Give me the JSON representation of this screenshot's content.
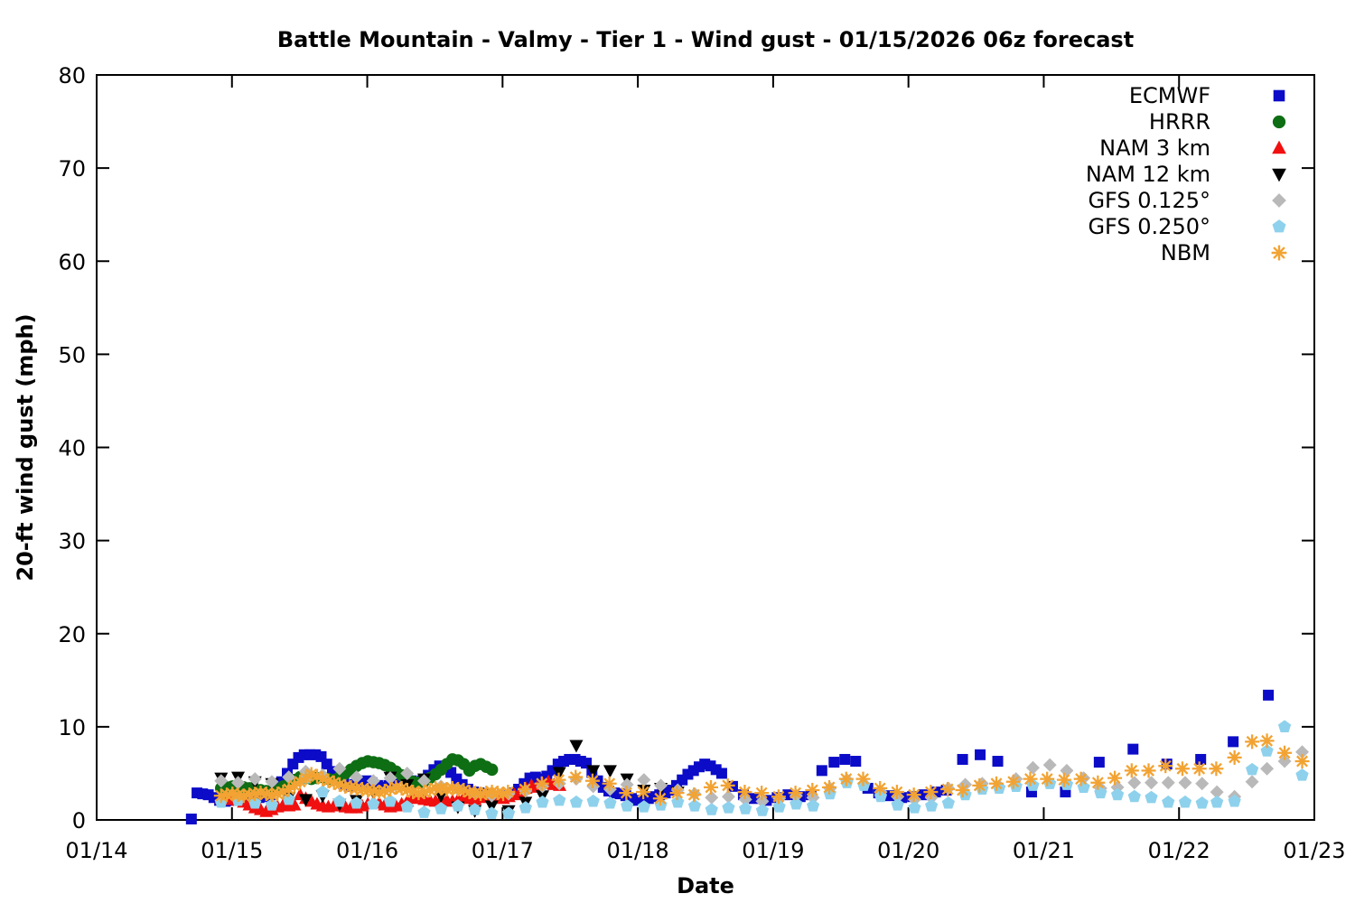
{
  "window": {
    "title": "Battle Mountain - Valmy - Tier 1 - Wind gust - 01/15/2026 06z forecast"
  },
  "chart_data": {
    "type": "scatter",
    "title": "Battle Mountain - Valmy - Tier 1 - Wind gust - 01/15/2026 06z forecast",
    "xlabel": "Date",
    "ylabel": "20-ft wind gust (mph)",
    "ylim": [
      0,
      80
    ],
    "yticks": [
      0,
      10,
      20,
      30,
      40,
      50,
      60,
      70,
      80
    ],
    "x_range_days": [
      0,
      9
    ],
    "xtick_labels": [
      "01/14",
      "01/15",
      "01/16",
      "01/17",
      "01/18",
      "01/19",
      "01/20",
      "01/21",
      "01/22",
      "01/23"
    ],
    "grid": false,
    "legend_position": "top-right-inside",
    "axis_color": "#000000",
    "background_color": "#ffffff",
    "series": [
      {
        "name": "ECMWF",
        "marker": "square",
        "color": "#0b0bc8",
        "segments": [
          {
            "start": 0.7,
            "step": 0.0417,
            "values": [
              0.1,
              2.9,
              2.8,
              2.7,
              2.4,
              2.1,
              2.0,
              2.1,
              2.2,
              2.4,
              2.6,
              2.5,
              2.4,
              2.5,
              2.7,
              3.3,
              4.1,
              5.0,
              6.0,
              6.7,
              7.0,
              7.0,
              7.0,
              6.8,
              6.0,
              5.2,
              4.4,
              3.9,
              3.6,
              3.8,
              4.1,
              4.2,
              4.0,
              3.7,
              3.5,
              3.7,
              4.1,
              4.5,
              4.6,
              4.2,
              3.9,
              4.2,
              4.8,
              5.4,
              5.8,
              5.6,
              5.1,
              4.4,
              3.8,
              3.3,
              3.0,
              2.9,
              2.8,
              2.6,
              2.5,
              2.4,
              2.6,
              2.9,
              3.3,
              3.9,
              4.5,
              4.6,
              4.4,
              4.7,
              5.3,
              6.0,
              6.3,
              6.5,
              6.5,
              6.3,
              6.1,
              5.1,
              4.2,
              3.5,
              3.1,
              2.9,
              2.8,
              2.6,
              2.3,
              2.1,
              2.1,
              2.3,
              2.5,
              2.7,
              2.9,
              3.2,
              3.7,
              4.3,
              4.9,
              5.3,
              5.7,
              6.0,
              5.8,
              5.4,
              5.0
            ]
          }
        ],
        "points": [
          [
            4.7,
            3.6
          ],
          [
            4.78,
            2.7
          ],
          [
            4.86,
            2.3
          ],
          [
            4.95,
            2.1
          ],
          [
            5.03,
            2.4
          ],
          [
            5.11,
            2.7
          ],
          [
            5.2,
            2.5
          ],
          [
            5.28,
            2.7
          ],
          [
            5.36,
            5.3
          ],
          [
            5.45,
            6.2
          ],
          [
            5.53,
            6.5
          ],
          [
            5.61,
            6.3
          ],
          [
            5.7,
            3.4
          ],
          [
            5.78,
            2.9
          ],
          [
            5.86,
            2.6
          ],
          [
            5.95,
            2.4
          ],
          [
            6.03,
            2.5
          ],
          [
            6.11,
            2.7
          ],
          [
            6.2,
            3.0
          ],
          [
            6.28,
            3.2
          ],
          [
            6.4,
            6.5
          ],
          [
            6.53,
            7.0
          ],
          [
            6.66,
            6.3
          ],
          [
            6.91,
            3.0
          ],
          [
            7.16,
            3.0
          ],
          [
            7.41,
            6.2
          ],
          [
            7.66,
            7.6
          ],
          [
            7.91,
            6.0
          ],
          [
            8.16,
            6.5
          ],
          [
            8.4,
            8.4
          ],
          [
            8.66,
            13.4
          ]
        ]
      },
      {
        "name": "HRRR",
        "marker": "circle",
        "color": "#0e6e14",
        "segments": [
          {
            "start": 0.92,
            "step": 0.0417,
            "values": [
              3.4,
              3.5,
              3.6,
              3.6,
              3.5,
              3.4,
              3.3,
              3.2,
              3.1,
              3.1,
              3.2,
              3.6,
              3.9,
              4.3,
              4.6,
              4.5,
              4.4,
              4.5,
              4.6,
              4.4,
              4.3,
              4.6,
              5.0,
              5.4,
              5.8,
              6.1,
              6.3,
              6.2,
              6.1,
              5.9,
              5.6,
              5.2,
              4.8,
              4.4,
              4.1,
              4.0,
              4.2,
              4.5,
              4.9,
              5.4,
              6.0,
              6.5,
              6.4,
              6.0,
              5.3,
              5.8,
              6.0,
              5.7,
              5.4
            ]
          }
        ],
        "points": []
      },
      {
        "name": "NAM 3 km",
        "marker": "triangle-up",
        "color": "#f01010",
        "segments": [
          {
            "start": 0.92,
            "step": 0.0417,
            "values": [
              2.3,
              2.2,
              2.2,
              2.1,
              1.9,
              1.6,
              1.3,
              1.1,
              0.9,
              1.1,
              1.4,
              1.6,
              1.5,
              1.6,
              2.7,
              2.3,
              2.0,
              1.7,
              1.5,
              1.4,
              1.5,
              1.6,
              1.4,
              1.3,
              1.3,
              1.5,
              1.7,
              1.9,
              1.8,
              1.6,
              1.4,
              1.5,
              1.7,
              2.0,
              2.3,
              2.5,
              2.2,
              2.1,
              2.0,
              2.2,
              2.1,
              2.0,
              2.2,
              2.4,
              2.3,
              2.2,
              2.4,
              2.6,
              2.8,
              2.5,
              2.3,
              2.5,
              2.7,
              3.0,
              3.4,
              3.7,
              3.5,
              3.9,
              4.1,
              3.8,
              3.7
            ]
          }
        ],
        "points": []
      },
      {
        "name": "NAM 12 km",
        "marker": "triangle-down",
        "color": "#000000",
        "segments": [
          {
            "start": 0.92,
            "step": 0.125,
            "values": [
              4.5,
              4.6,
              4.1,
              3.9,
              2.4,
              2.2,
              2.6,
              1.7,
              2.1,
              3.0,
              4.6,
              3.8,
              4.4,
              2.6,
              1.4,
              1.0,
              1.5,
              1.0,
              1.9,
              2.6,
              5.1,
              8.0,
              5.3,
              5.3,
              4.4,
              3.2,
              3.4,
              3.0
            ]
          }
        ],
        "points": []
      },
      {
        "name": "GFS 0.125°",
        "marker": "diamond",
        "color": "#b9b9b9",
        "segments": [
          {
            "start": 0.92,
            "step": 0.125,
            "values": [
              4.2,
              4.0,
              4.4,
              4.1,
              4.6,
              5.2,
              4.8,
              5.5,
              4.6,
              4.2,
              4.5,
              5.0,
              4.2,
              3.6,
              3.3,
              2.9,
              2.6,
              2.8,
              3.1,
              3.6,
              3.9,
              4.4,
              3.6,
              3.3,
              3.8,
              4.3,
              3.7,
              3.2,
              2.8,
              2.4,
              2.5,
              2.2,
              2.0,
              2.3,
              2.6,
              2.4,
              3.4,
              4.3,
              3.9,
              3.0,
              2.5,
              2.2,
              2.4,
              3.4,
              3.8,
              3.9,
              3.6,
              4.4,
              5.6,
              5.9,
              5.3,
              4.5,
              3.4,
              3.5,
              4.0,
              4.0,
              4.0,
              4.0,
              3.9
            ]
          }
        ],
        "points": [
          [
            8.28,
            3.0
          ],
          [
            8.41,
            2.5
          ],
          [
            8.54,
            4.1
          ],
          [
            8.65,
            5.5
          ],
          [
            8.78,
            6.3
          ],
          [
            8.91,
            7.3
          ]
        ]
      },
      {
        "name": "GFS 0.250°",
        "marker": "pentagon",
        "color": "#8ed1ec",
        "segments": [
          {
            "start": 0.92,
            "step": 0.125,
            "values": [
              1.9,
              2.1,
              1.8,
              1.6,
              2.2,
              4.5,
              3.0,
              2.0,
              1.8,
              1.7,
              2.0,
              1.4,
              0.8,
              1.2,
              1.5,
              1.1,
              0.7,
              0.7,
              1.3,
              1.9,
              2.1,
              1.9,
              2.0,
              1.8,
              1.5,
              1.4,
              1.6,
              1.9,
              1.5,
              1.1,
              1.3,
              1.2,
              1.0,
              1.4,
              1.7,
              1.5,
              2.8,
              4.0,
              3.7,
              2.5,
              1.6,
              1.3,
              1.5,
              1.8,
              2.7,
              3.3,
              3.4,
              3.6,
              3.7,
              3.9,
              3.8,
              3.5,
              2.9,
              2.7,
              2.5,
              2.4,
              1.9,
              1.9,
              1.8
            ]
          }
        ],
        "points": [
          [
            8.28,
            1.9
          ],
          [
            8.41,
            2.0
          ],
          [
            8.54,
            5.4
          ],
          [
            8.65,
            7.4
          ],
          [
            8.78,
            10.0
          ],
          [
            8.91,
            4.8
          ]
        ]
      },
      {
        "name": "NBM",
        "marker": "asterisk",
        "color": "#f2a333",
        "segments": [
          {
            "start": 0.92,
            "step": 0.0417,
            "values": [
              2.6,
              2.7,
              2.8,
              2.7,
              2.6,
              2.7,
              2.8,
              2.9,
              2.8,
              2.7,
              2.8,
              3.0,
              3.3,
              3.7,
              4.1,
              4.5,
              4.9,
              4.7,
              4.4,
              4.2,
              4.0,
              3.8,
              3.6,
              3.5,
              3.4,
              3.3,
              3.2,
              3.1,
              3.0,
              3.1,
              3.3,
              3.5,
              3.4,
              3.2,
              3.0,
              2.9,
              3.0,
              3.2,
              3.4,
              3.4,
              3.3,
              3.4,
              3.3,
              3.2,
              3.0,
              2.9,
              2.8,
              2.9,
              3.0,
              2.9,
              2.8
            ]
          },
          {
            "start": 3.04,
            "step": 0.125,
            "values": [
              3.0,
              3.3,
              3.9,
              4.3,
              4.6,
              4.2,
              3.9,
              2.9,
              3.0,
              2.3,
              2.9,
              2.7,
              3.5,
              3.7,
              3.0,
              2.9,
              2.5,
              2.9,
              3.2,
              3.5,
              4.4,
              4.4,
              3.4,
              3.0,
              2.7,
              3.0,
              3.3
            ]
          },
          {
            "start": 6.4,
            "step": 0.125,
            "values": [
              3.2,
              3.7,
              3.9,
              4.1,
              4.4,
              4.4,
              4.3,
              4.4,
              4.0,
              4.5,
              5.3,
              5.3,
              5.8,
              5.5,
              5.5,
              5.5
            ]
          }
        ],
        "points": [
          [
            8.41,
            6.7
          ],
          [
            8.54,
            8.4
          ],
          [
            8.65,
            8.5
          ],
          [
            8.78,
            7.2
          ],
          [
            8.91,
            6.3
          ]
        ]
      }
    ]
  }
}
